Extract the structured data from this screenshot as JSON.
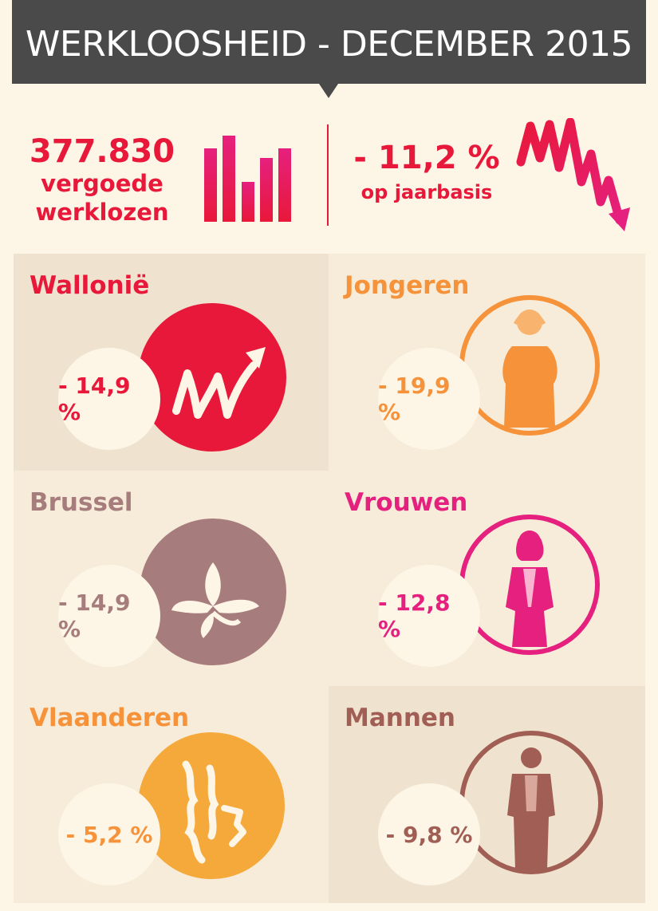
{
  "header": {
    "title": "WERKLOOSHEID - DECEMBER 2015"
  },
  "summary": {
    "count": "377.830",
    "count_label_1": "vergoede",
    "count_label_2": "werklozen",
    "change": "- 11,2 %",
    "change_label": "op jaarbasis"
  },
  "colors": {
    "red": "#e8183a",
    "orange": "#f6923a",
    "mauve": "#a77c7c",
    "pink": "#e6207e",
    "vl_orange": "#f5a93b",
    "brown": "#a15e55",
    "panel_dark": "#efe3cf",
    "panel_light": "#f6ecd9"
  },
  "panels": [
    {
      "title": "Wallonië",
      "value": "- 14,9 %",
      "icon": "wallonia-rooster-icon"
    },
    {
      "title": "Jongeren",
      "value": "- 19,9 %",
      "icon": "youth-silhouette-icon"
    },
    {
      "title": "Brussel",
      "value": "- 14,9 %",
      "icon": "brussels-iris-icon"
    },
    {
      "title": "Vrouwen",
      "value": "- 12,8 %",
      "icon": "woman-silhouette-icon"
    },
    {
      "title": "Vlaanderen",
      "value": "- 5,2 %",
      "icon": "flanders-lion-icon"
    },
    {
      "title": "Mannen",
      "value": "- 9,8 %",
      "icon": "man-silhouette-icon"
    }
  ]
}
